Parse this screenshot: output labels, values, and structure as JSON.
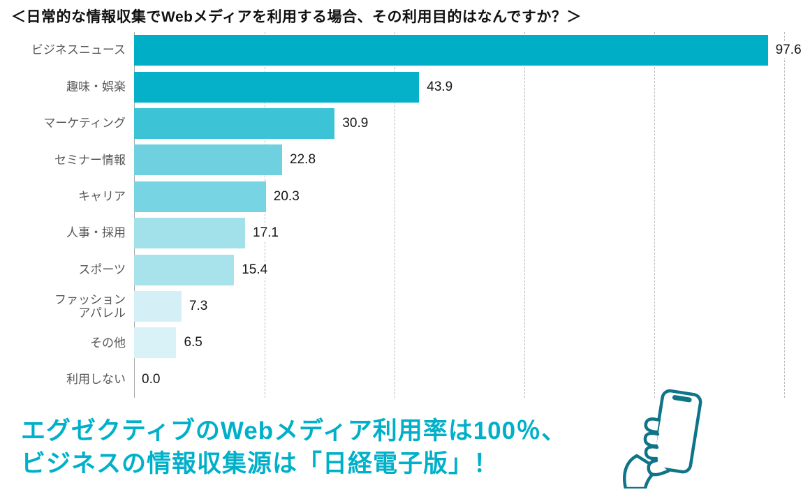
{
  "title": "＜日常的な情報収集でWebメディアを利用する場合、その利用目的はなんですか？＞",
  "chart_data": {
    "type": "bar",
    "orientation": "horizontal",
    "title": "＜日常的な情報収集でWebメディアを利用する場合、その利用目的はなんですか？＞",
    "categories": [
      "ビジネスニュース",
      "趣味・娯楽",
      "マーケティング",
      "セミナー情報",
      "キャリア",
      "人事・採用",
      "スポーツ",
      "ファッション\nアパレル",
      "その他",
      "利用しない"
    ],
    "values": [
      97.6,
      43.9,
      30.9,
      22.8,
      20.3,
      17.1,
      15.4,
      7.3,
      6.5,
      0.0
    ],
    "value_labels": [
      "97.6",
      "43.9",
      "30.9",
      "22.8",
      "20.3",
      "17.1",
      "15.4",
      "7.3",
      "6.5",
      "0.0"
    ],
    "bar_colors": [
      "#00aec6",
      "#04b1c9",
      "#3cc3d6",
      "#6fd1e0",
      "#77d4e2",
      "#a2e1ea",
      "#a8e3ec",
      "#d4f0f6",
      "#d9f2f7",
      "transparent"
    ],
    "xlim": [
      0,
      100
    ],
    "gridlines": [
      20,
      40,
      60,
      80,
      100
    ],
    "grid": "dashed-vertical",
    "xlabel": "",
    "ylabel": "",
    "legend": "none"
  },
  "caption": {
    "line1": "エグゼクティブのWebメディア利用率は100％、",
    "line2": "ビジネスの情報収集源は「日経電子版」！"
  },
  "colors": {
    "accent": "#00aec6",
    "caption_text": "#00b0c9",
    "category_label": "#595757",
    "icon_stroke": "#0e7488"
  },
  "icons": {
    "phone_in_hand": "smartphone-in-hand-icon"
  }
}
